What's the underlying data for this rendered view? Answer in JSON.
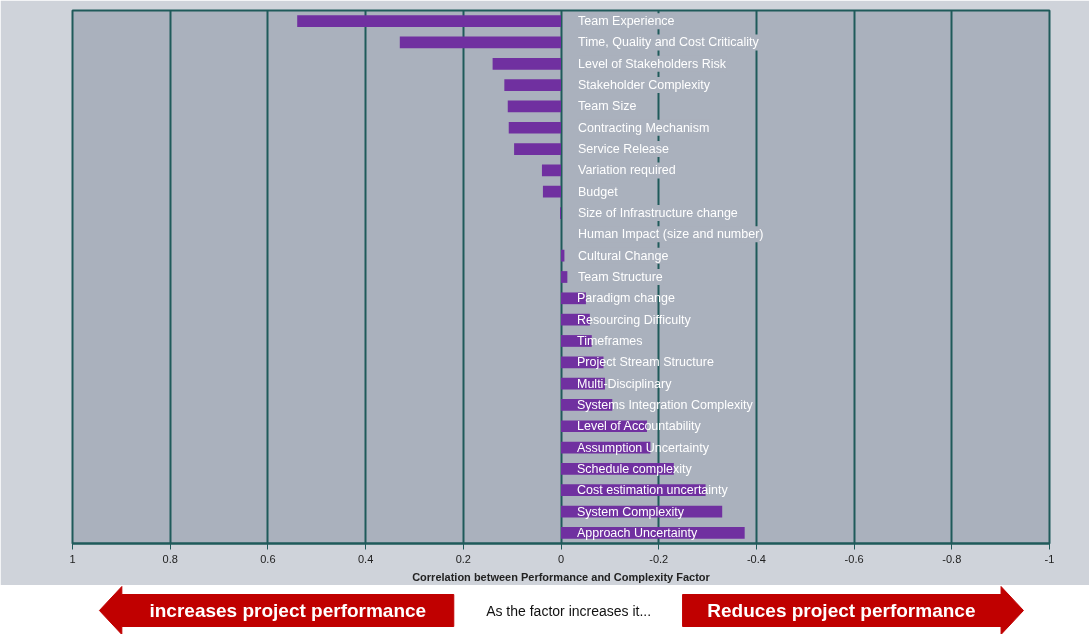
{
  "chart_data": {
    "type": "bar",
    "orientation": "horizontal",
    "categories": [
      "Team Experience",
      "Time, Quality and Cost Criticality",
      "Level of Stakeholders Risk",
      "Stakeholder Complexity",
      "Team Size",
      "Contracting Mechanism",
      "Service Release",
      "Variation required",
      "Budget",
      "Size of Infrastructure change",
      "Human Impact (size and number)",
      "Cultural Change",
      "Team Structure",
      "Paradigm change",
      "Resourcing Difficulty",
      "Timeframes",
      "Project Stream Structure",
      "Multi-Disciplinary",
      "Systems Integration Complexity",
      "Level of Accountability",
      "Assumption Uncertainty",
      "Schedule complexity",
      "Cost estimation uncertainty",
      "System Complexity",
      "Approach Uncertainty"
    ],
    "values": [
      0.54,
      0.33,
      0.14,
      0.116,
      0.109,
      0.107,
      0.096,
      0.039,
      0.037,
      0.002,
      0,
      -0.007,
      -0.013,
      -0.051,
      -0.059,
      -0.063,
      -0.087,
      -0.09,
      -0.105,
      -0.176,
      -0.183,
      -0.231,
      -0.296,
      -0.33,
      -0.376
    ],
    "color": "#7030a0",
    "xlim": [
      1,
      -1
    ],
    "xticks": [
      1,
      0.8,
      0.6,
      0.4,
      0.2,
      0,
      -0.2,
      -0.4,
      -0.6,
      -0.8,
      -1
    ],
    "xlabel": "Correlation between Performance and Complexity Factor",
    "grid": "x",
    "tick_labels": "x",
    "annotations": [
      "increases project performance",
      "As the factor increases it...",
      "Reduces project performance"
    ]
  }
}
